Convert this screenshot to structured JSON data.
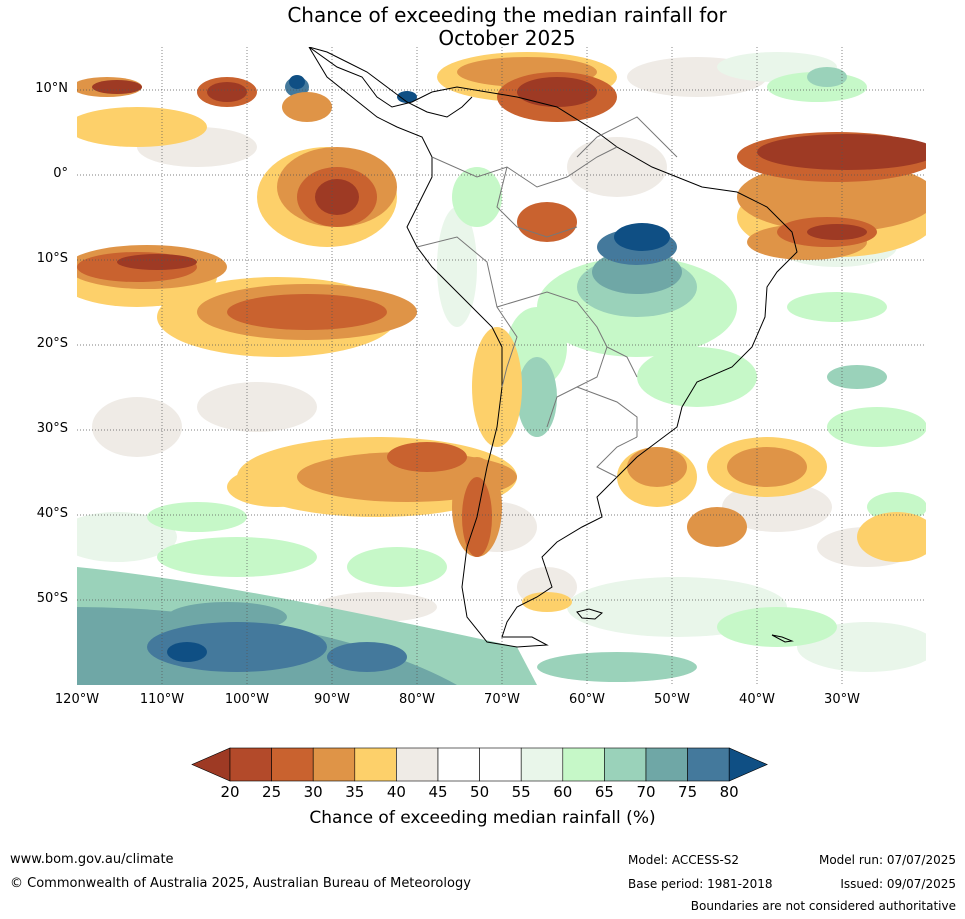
{
  "title_line1": "Chance of exceeding the median rainfall for",
  "title_line2": "October 2025",
  "lat_labels": [
    "10°N",
    "0°",
    "10°S",
    "20°S",
    "30°S",
    "40°S",
    "50°S"
  ],
  "lon_labels": [
    "120°W",
    "110°W",
    "100°W",
    "90°W",
    "80°W",
    "70°W",
    "60°W",
    "50°W",
    "40°W",
    "30°W"
  ],
  "colorbar": {
    "ticks": [
      "20",
      "25",
      "30",
      "35",
      "40",
      "45",
      "50",
      "55",
      "60",
      "65",
      "70",
      "75",
      "80"
    ],
    "colors": [
      "#9e3a24",
      "#b34a2a",
      "#c9622f",
      "#df9447",
      "#fdd06a",
      "#efebe6",
      "#ffffff",
      "#ffffff",
      "#e9f6ea",
      "#c6f8c8",
      "#9ad2ba",
      "#6fa7a6",
      "#44799c",
      "#0f4f84"
    ],
    "label": "Chance of exceeding median rainfall (%)"
  },
  "footer": {
    "url": "www.bom.gov.au/climate",
    "copyright": "© Commonwealth of Australia 2025, Australian Bureau of Meteorology",
    "model": "Model: ACCESS-S2",
    "base_period": "Base period: 1981-2018",
    "model_run": "Model run: 07/07/2025",
    "issued": "Issued: 09/07/2025",
    "disclaimer": "Boundaries are not considered authoritative"
  }
}
